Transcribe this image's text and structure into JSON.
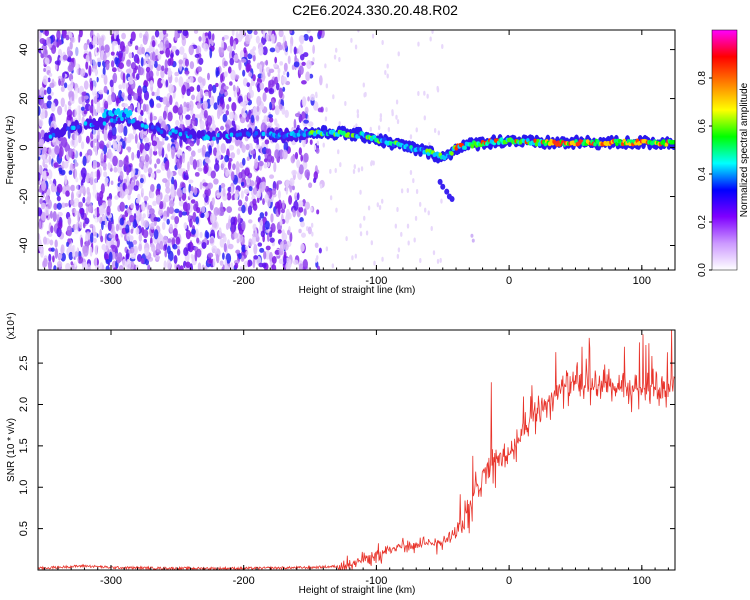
{
  "title": "C2E6.2024.330.20.48.R02",
  "chart_data": [
    {
      "type": "heatmap",
      "xlabel": "Height of straight line (km)",
      "ylabel": "Frequency (Hz)",
      "xlim": [
        -355,
        125
      ],
      "ylim": [
        -50,
        48
      ],
      "xticks": [
        -300,
        -200,
        -100,
        0,
        100
      ],
      "yticks": [
        -40,
        -20,
        0,
        20,
        40
      ],
      "colorbar": {
        "label": "Normalized spectral amplitude",
        "range": [
          0.0,
          1.0
        ],
        "ticks": [
          "0.0",
          "0.2",
          "0.4",
          "0.6",
          "0.8"
        ],
        "colors": [
          "#ffffff",
          "#cc99ff",
          "#7f00ff",
          "#0000ff",
          "#00ffff",
          "#00ff00",
          "#ffff00",
          "#ff8000",
          "#ff0000",
          "#ff00ff"
        ]
      },
      "ridge": {
        "x": [
          -345,
          -330,
          -310,
          -290,
          -270,
          -250,
          -230,
          -210,
          -190,
          -170,
          -150,
          -130,
          -110,
          -90,
          -75,
          -60,
          -50,
          -45,
          -40,
          -30,
          -20,
          0,
          20,
          60,
          100,
          125
        ],
        "freq": [
          5,
          8,
          10,
          12,
          8,
          6,
          4,
          5,
          6,
          5,
          6,
          6,
          5,
          2,
          0,
          -2,
          -4,
          -3,
          0,
          1,
          2,
          3,
          2,
          2,
          2,
          2
        ]
      }
    },
    {
      "type": "line",
      "xlabel": "Height of straight line (km)",
      "ylabel": "SNR (10 * v/v)",
      "yscale_label": "(x10⁴)",
      "xlim": [
        -355,
        125
      ],
      "ylim": [
        0,
        2.9
      ],
      "xticks": [
        -300,
        -200,
        -100,
        0,
        100
      ],
      "yticks": [
        "0.5",
        "1.0",
        "1.5",
        "2.0",
        "2.5"
      ],
      "color": "#e8332a",
      "series": {
        "name": "SNR",
        "x": [
          -355,
          -320,
          -300,
          -250,
          -200,
          -150,
          -120,
          -110,
          -100,
          -90,
          -80,
          -70,
          -60,
          -50,
          -40,
          -30,
          -25,
          -20,
          -15,
          -10,
          0,
          10,
          20,
          30,
          40,
          50,
          60,
          70,
          80,
          90,
          100,
          110,
          125
        ],
        "y": [
          0.02,
          0.05,
          0.03,
          0.02,
          0.02,
          0.03,
          0.05,
          0.12,
          0.18,
          0.25,
          0.3,
          0.28,
          0.32,
          0.35,
          0.45,
          0.7,
          1.0,
          1.2,
          1.25,
          1.3,
          1.4,
          1.6,
          1.9,
          2.05,
          2.2,
          2.25,
          2.2,
          2.25,
          2.2,
          2.15,
          2.2,
          2.2,
          2.2
        ]
      }
    }
  ]
}
